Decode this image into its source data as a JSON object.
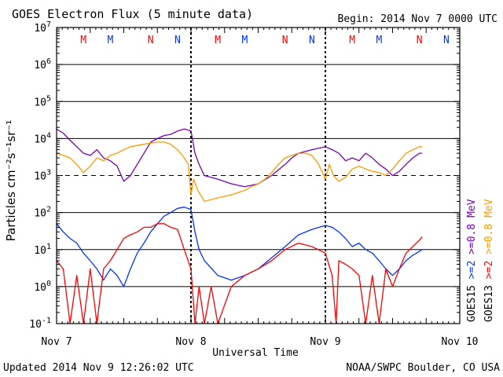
{
  "chart_data": {
    "type": "line",
    "title": "GOES Electron Flux (5 minute data)",
    "begin_label": "Begin: 2014 Nov 7 0000 UTC",
    "xlabel": "Universal Time",
    "ylabel": "Particles cm⁻²s⁻¹sr⁻¹",
    "y_scale": "log",
    "ylim": [
      0.1,
      10000000
    ],
    "y_ticks": [
      {
        "base": "10",
        "exp": "-1",
        "value": 0.1
      },
      {
        "base": "10",
        "exp": "0",
        "value": 1
      },
      {
        "base": "10",
        "exp": "1",
        "value": 10
      },
      {
        "base": "10",
        "exp": "2",
        "value": 100
      },
      {
        "base": "10",
        "exp": "3",
        "value": 1000
      },
      {
        "base": "10",
        "exp": "4",
        "value": 10000
      },
      {
        "base": "10",
        "exp": "5",
        "value": 100000
      },
      {
        "base": "10",
        "exp": "6",
        "value": 1000000
      },
      {
        "base": "10",
        "exp": "7",
        "value": 10000000
      }
    ],
    "x_ticks": [
      "Nov 7",
      "Nov 8",
      "Nov 9",
      "Nov 10"
    ],
    "x_domain_days": [
      7,
      10
    ],
    "dashed_threshold": 1000,
    "grid": true,
    "legend_position": "right-vertical",
    "legend": [
      {
        "sat": "GOES15",
        "energy": ">=2",
        "unit": "",
        "color": "#0033ff"
      },
      {
        "sat": "",
        "energy": ">=0.8",
        "unit": "MeV",
        "color": "#7700bb"
      },
      {
        "sat": "GOES13",
        "energy": ">=2",
        "unit": "",
        "color": "#ff0000"
      },
      {
        "sat": "",
        "energy": ">=0.8",
        "unit": "MeV",
        "color": "#ff9900"
      }
    ],
    "markers": [
      {
        "label": "M",
        "day": 7.2,
        "color": "#ff0000"
      },
      {
        "label": "M",
        "day": 7.4,
        "color": "#0033ff"
      },
      {
        "label": "N",
        "day": 7.7,
        "color": "#ff0000"
      },
      {
        "label": "N",
        "day": 7.9,
        "color": "#0033ff"
      },
      {
        "label": "M",
        "day": 8.2,
        "color": "#ff0000"
      },
      {
        "label": "M",
        "day": 8.4,
        "color": "#0033ff"
      },
      {
        "label": "N",
        "day": 8.7,
        "color": "#ff0000"
      },
      {
        "label": "N",
        "day": 8.9,
        "color": "#0033ff"
      },
      {
        "label": "M",
        "day": 9.2,
        "color": "#ff0000"
      },
      {
        "label": "M",
        "day": 9.4,
        "color": "#0033ff"
      },
      {
        "label": "N",
        "day": 9.7,
        "color": "#ff0000"
      },
      {
        "label": "N",
        "day": 9.9,
        "color": "#0033ff"
      }
    ],
    "series": [
      {
        "name": "GOES15 >=0.8 MeV",
        "color": "#7700bb",
        "points": [
          [
            7.0,
            18000
          ],
          [
            7.05,
            14000
          ],
          [
            7.1,
            9000
          ],
          [
            7.15,
            6000
          ],
          [
            7.2,
            4000
          ],
          [
            7.25,
            3500
          ],
          [
            7.3,
            5000
          ],
          [
            7.35,
            3000
          ],
          [
            7.4,
            2500
          ],
          [
            7.45,
            1800
          ],
          [
            7.5,
            700
          ],
          [
            7.55,
            1000
          ],
          [
            7.6,
            2000
          ],
          [
            7.65,
            4000
          ],
          [
            7.7,
            8000
          ],
          [
            7.75,
            10000
          ],
          [
            7.8,
            12000
          ],
          [
            7.85,
            13000
          ],
          [
            7.9,
            16000
          ],
          [
            7.95,
            18000
          ],
          [
            8.0,
            16000
          ],
          [
            8.03,
            4000
          ],
          [
            8.06,
            2000
          ],
          [
            8.1,
            1000
          ],
          [
            8.2,
            800
          ],
          [
            8.3,
            600
          ],
          [
            8.4,
            500
          ],
          [
            8.5,
            600
          ],
          [
            8.6,
            1000
          ],
          [
            8.7,
            2000
          ],
          [
            8.75,
            3000
          ],
          [
            8.8,
            4000
          ],
          [
            8.9,
            5000
          ],
          [
            9.0,
            6000
          ],
          [
            9.05,
            5000
          ],
          [
            9.1,
            4000
          ],
          [
            9.15,
            2500
          ],
          [
            9.2,
            3000
          ],
          [
            9.25,
            2500
          ],
          [
            9.3,
            4000
          ],
          [
            9.35,
            3000
          ],
          [
            9.4,
            2000
          ],
          [
            9.45,
            1500
          ],
          [
            9.5,
            1000
          ],
          [
            9.55,
            1300
          ],
          [
            9.6,
            2000
          ],
          [
            9.65,
            3000
          ],
          [
            9.7,
            4000
          ],
          [
            9.72,
            4000
          ]
        ]
      },
      {
        "name": "GOES13 >=0.8 MeV",
        "color": "#ff9900",
        "points": [
          [
            7.0,
            4000
          ],
          [
            7.05,
            3500
          ],
          [
            7.1,
            3000
          ],
          [
            7.15,
            2000
          ],
          [
            7.2,
            1200
          ],
          [
            7.25,
            1800
          ],
          [
            7.3,
            3000
          ],
          [
            7.35,
            2500
          ],
          [
            7.4,
            3500
          ],
          [
            7.45,
            4000
          ],
          [
            7.5,
            5000
          ],
          [
            7.55,
            6000
          ],
          [
            7.6,
            6500
          ],
          [
            7.65,
            7000
          ],
          [
            7.7,
            7500
          ],
          [
            7.75,
            8000
          ],
          [
            7.8,
            8000
          ],
          [
            7.85,
            7000
          ],
          [
            7.9,
            5000
          ],
          [
            7.95,
            3000
          ],
          [
            7.98,
            2000
          ],
          [
            8.0,
            300
          ],
          [
            8.02,
            800
          ],
          [
            8.05,
            400
          ],
          [
            8.1,
            200
          ],
          [
            8.2,
            250
          ],
          [
            8.3,
            300
          ],
          [
            8.4,
            400
          ],
          [
            8.45,
            500
          ],
          [
            8.5,
            600
          ],
          [
            8.55,
            800
          ],
          [
            8.6,
            1200
          ],
          [
            8.65,
            2000
          ],
          [
            8.7,
            3000
          ],
          [
            8.75,
            3500
          ],
          [
            8.8,
            4000
          ],
          [
            8.85,
            4000
          ],
          [
            8.9,
            3500
          ],
          [
            8.95,
            2000
          ],
          [
            9.0,
            800
          ],
          [
            9.03,
            2000
          ],
          [
            9.06,
            1000
          ],
          [
            9.1,
            700
          ],
          [
            9.15,
            900
          ],
          [
            9.2,
            1500
          ],
          [
            9.25,
            1800
          ],
          [
            9.3,
            1500
          ],
          [
            9.35,
            1300
          ],
          [
            9.4,
            1200
          ],
          [
            9.45,
            1000
          ],
          [
            9.5,
            1500
          ],
          [
            9.55,
            2500
          ],
          [
            9.6,
            4000
          ],
          [
            9.65,
            5000
          ],
          [
            9.7,
            6000
          ],
          [
            9.72,
            6000
          ]
        ]
      },
      {
        "name": "GOES15 >=2 MeV",
        "color": "#0033ff",
        "points": [
          [
            7.0,
            50
          ],
          [
            7.05,
            30
          ],
          [
            7.1,
            20
          ],
          [
            7.15,
            15
          ],
          [
            7.2,
            8
          ],
          [
            7.25,
            5
          ],
          [
            7.3,
            3
          ],
          [
            7.35,
            1.5
          ],
          [
            7.4,
            3
          ],
          [
            7.45,
            2
          ],
          [
            7.5,
            1
          ],
          [
            7.55,
            3
          ],
          [
            7.6,
            8
          ],
          [
            7.65,
            15
          ],
          [
            7.7,
            30
          ],
          [
            7.75,
            50
          ],
          [
            7.8,
            80
          ],
          [
            7.85,
            100
          ],
          [
            7.9,
            130
          ],
          [
            7.95,
            140
          ],
          [
            8.0,
            120
          ],
          [
            8.03,
            30
          ],
          [
            8.06,
            10
          ],
          [
            8.1,
            5
          ],
          [
            8.2,
            2
          ],
          [
            8.3,
            1.5
          ],
          [
            8.4,
            2
          ],
          [
            8.5,
            3
          ],
          [
            8.6,
            6
          ],
          [
            8.7,
            12
          ],
          [
            8.8,
            25
          ],
          [
            8.9,
            35
          ],
          [
            9.0,
            45
          ],
          [
            9.05,
            40
          ],
          [
            9.1,
            30
          ],
          [
            9.15,
            20
          ],
          [
            9.2,
            12
          ],
          [
            9.25,
            15
          ],
          [
            9.3,
            10
          ],
          [
            9.35,
            8
          ],
          [
            9.4,
            5
          ],
          [
            9.45,
            3
          ],
          [
            9.5,
            2
          ],
          [
            9.55,
            3
          ],
          [
            9.6,
            5
          ],
          [
            9.65,
            7
          ],
          [
            9.7,
            9
          ],
          [
            9.72,
            10
          ]
        ]
      },
      {
        "name": "GOES13 >=2 MeV",
        "color": "#ff0000",
        "points": [
          [
            7.0,
            5
          ],
          [
            7.05,
            3
          ],
          [
            7.1,
            0.1
          ],
          [
            7.15,
            2
          ],
          [
            7.2,
            0.1
          ],
          [
            7.25,
            3
          ],
          [
            7.3,
            0.1
          ],
          [
            7.35,
            3
          ],
          [
            7.4,
            5
          ],
          [
            7.45,
            10
          ],
          [
            7.5,
            20
          ],
          [
            7.55,
            25
          ],
          [
            7.6,
            30
          ],
          [
            7.65,
            40
          ],
          [
            7.7,
            40
          ],
          [
            7.75,
            50
          ],
          [
            7.8,
            50
          ],
          [
            7.85,
            40
          ],
          [
            7.9,
            35
          ],
          [
            7.95,
            10
          ],
          [
            8.0,
            3
          ],
          [
            8.03,
            0.1
          ],
          [
            8.06,
            1
          ],
          [
            8.1,
            0.1
          ],
          [
            8.15,
            1
          ],
          [
            8.2,
            0.1
          ],
          [
            8.3,
            1
          ],
          [
            8.4,
            2
          ],
          [
            8.5,
            3
          ],
          [
            8.6,
            5
          ],
          [
            8.7,
            10
          ],
          [
            8.8,
            15
          ],
          [
            8.9,
            12
          ],
          [
            9.0,
            8
          ],
          [
            9.05,
            2
          ],
          [
            9.08,
            0.1
          ],
          [
            9.1,
            5
          ],
          [
            9.15,
            4
          ],
          [
            9.2,
            3
          ],
          [
            9.25,
            2
          ],
          [
            9.3,
            0.1
          ],
          [
            9.35,
            2
          ],
          [
            9.4,
            0.1
          ],
          [
            9.45,
            3
          ],
          [
            9.5,
            1
          ],
          [
            9.55,
            3
          ],
          [
            9.6,
            8
          ],
          [
            9.65,
            12
          ],
          [
            9.7,
            18
          ],
          [
            9.72,
            22
          ]
        ]
      }
    ]
  },
  "footer": {
    "updated": "Updated 2014 Nov  9 12:26:02 UTC",
    "source": "NOAA/SWPC Boulder, CO USA"
  }
}
